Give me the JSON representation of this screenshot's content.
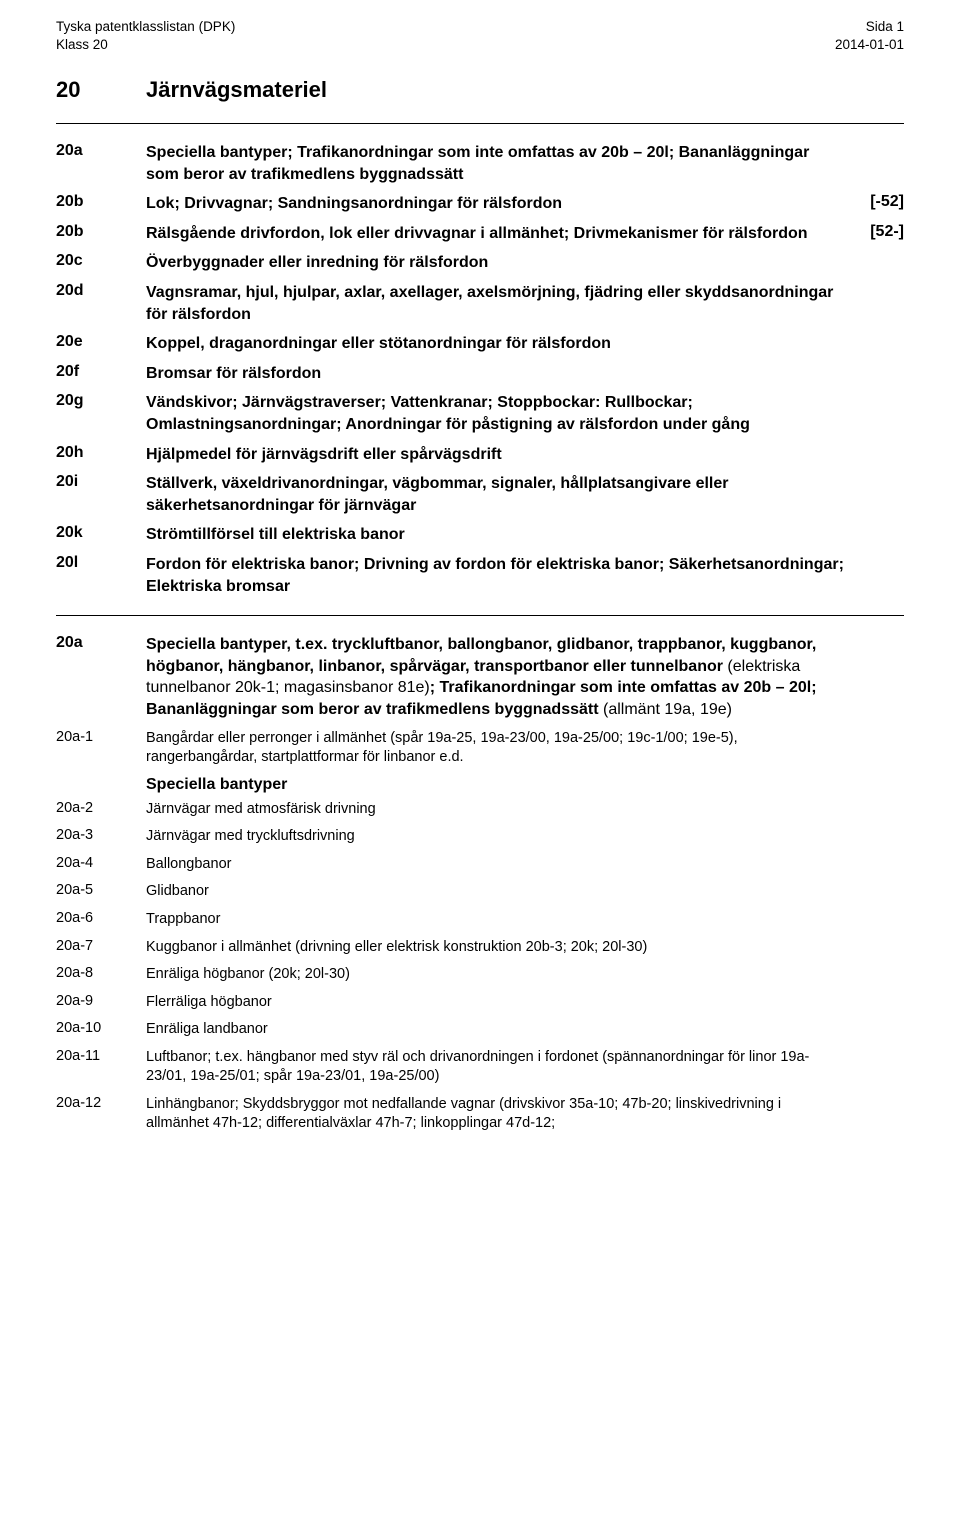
{
  "header": {
    "left1": "Tyska patentklasslistan (DPK)",
    "left2": "Klass 20",
    "right1": "Sida 1",
    "right2": "2014-01-01"
  },
  "title": {
    "code": "20",
    "text": "Järnvägsmateriel"
  },
  "mainEntries": [
    {
      "code": "20a",
      "desc": "Speciella bantyper; Trafikanordningar som inte omfattas av 20b – 20l; Bananläggningar som beror av trafikmedlens byggnadssätt",
      "bracket": ""
    },
    {
      "code": "20b",
      "desc": "Lok; Drivvagnar; Sandningsanordningar för rälsfordon",
      "bracket": "[-52]"
    },
    {
      "code": "20b",
      "desc": "Rälsgående drivfordon, lok eller drivvagnar i allmänhet; Drivmekanismer för rälsfordon",
      "bracket": "[52-]"
    },
    {
      "code": "20c",
      "desc": "Överbyggnader eller inredning för rälsfordon",
      "bracket": ""
    },
    {
      "code": "20d",
      "desc": "Vagnsramar, hjul, hjulpar, axlar, axellager, axelsmörjning, fjädring eller skyddsanordningar för rälsfordon",
      "bracket": ""
    },
    {
      "code": "20e",
      "desc": "Koppel, draganordningar eller stötanordningar för rälsfordon",
      "bracket": ""
    },
    {
      "code": "20f",
      "desc": "Bromsar för rälsfordon",
      "bracket": ""
    },
    {
      "code": "20g",
      "desc": "Vändskivor; Järnvägstraverser; Vattenkranar; Stoppbockar: Rullbockar; Omlastningsanordningar; Anordningar för påstigning av rälsfordon under gång",
      "bracket": ""
    },
    {
      "code": "20h",
      "desc": "Hjälpmedel för järnvägsdrift eller spårvägsdrift",
      "bracket": ""
    },
    {
      "code": "20i",
      "desc": "Ställverk, växeldrivanordningar, vägbommar, signaler, hållplatsangivare eller säkerhetsanordningar för järnvägar",
      "bracket": ""
    },
    {
      "code": "20k",
      "desc": "Strömtillförsel till elektriska banor",
      "bracket": ""
    },
    {
      "code": "20l",
      "desc": "Fordon för elektriska banor; Drivning av fordon för elektriska banor; Säkerhetsanordningar; Elektriska bromsar",
      "bracket": ""
    }
  ],
  "section20a": {
    "code": "20a",
    "parts": [
      {
        "t": "Speciella bantyper, t.ex. tryckluftbanor, ballongbanor, glidbanor, trappbanor, kuggbanor, högbanor, hängbanor, linbanor, spårvägar, transportbanor eller tunnelbanor ",
        "b": true
      },
      {
        "t": "(elektriska tunnelbanor 20k-1; magasinsbanor 81e)",
        "b": false
      },
      {
        "t": "; Trafikanordningar som inte omfattas av 20b – 20l; Bananläggningar som beror av trafikmedlens byggnadssätt ",
        "b": true
      },
      {
        "t": "(allmänt 19a, 19e)",
        "b": false
      }
    ]
  },
  "detailEntries1": [
    {
      "code": "20a-1",
      "desc": "Bangårdar eller perronger i allmänhet (spår 19a-25, 19a-23/00, 19a-25/00; 19c-1/00; 19e-5), rangerbangårdar, startplattformar för linbanor e.d."
    }
  ],
  "subheading": "Speciella bantyper",
  "detailEntries2": [
    {
      "code": "20a-2",
      "desc": "Järnvägar med atmosfärisk drivning"
    },
    {
      "code": "20a-3",
      "desc": "Järnvägar med tryckluftsdrivning"
    },
    {
      "code": "20a-4",
      "desc": "Ballongbanor"
    },
    {
      "code": "20a-5",
      "desc": "Glidbanor"
    },
    {
      "code": "20a-6",
      "desc": "Trappbanor"
    },
    {
      "code": "20a-7",
      "desc": "Kuggbanor i allmänhet (drivning eller elektrisk konstruktion 20b-3; 20k; 20l-30)"
    },
    {
      "code": "20a-8",
      "desc": "Enräliga högbanor (20k; 20l-30)"
    },
    {
      "code": "20a-9",
      "desc": "Flerräliga högbanor"
    },
    {
      "code": "20a-10",
      "desc": "Enräliga landbanor"
    },
    {
      "code": "20a-11",
      "desc": "Luftbanor; t.ex. hängbanor med styv räl och drivanordningen i fordonet (spännanordningar för linor 19a-23/01, 19a-25/01; spår 19a-23/01, 19a-25/00)"
    },
    {
      "code": "20a-12",
      "desc": "Linhängbanor; Skyddsbryggor mot nedfallande vagnar (drivskivor 35a-10; 47b-20; linskivedrivning i allmänhet 47h-12; differentialväxlar 47h-7; linkopplingar 47d-12;"
    }
  ]
}
